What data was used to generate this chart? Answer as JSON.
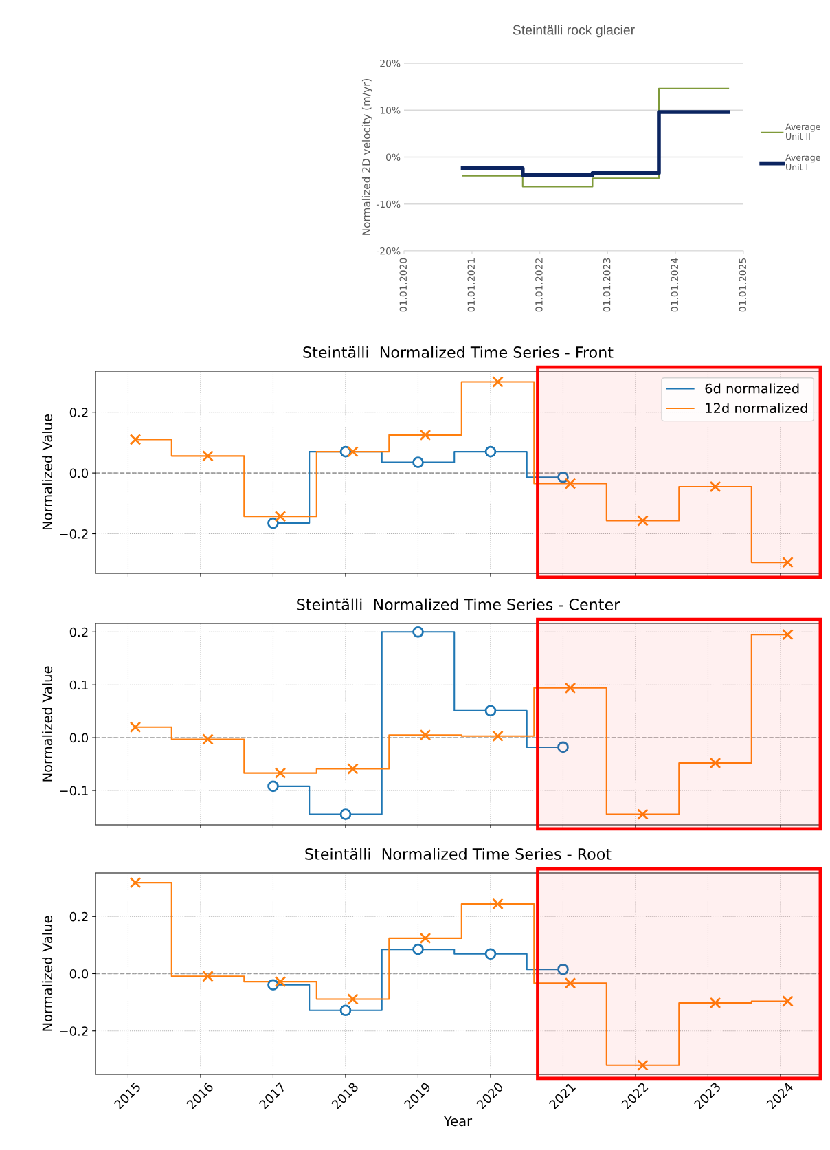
{
  "chart_data": [
    {
      "type": "step",
      "title": "Steintälli rock glacier",
      "ylabel": "Normalized 2D velocity (m/yr)",
      "series": [
        {
          "name": "Average Unit II",
          "color": "#7f9a3a",
          "x": [
            "2020-11-12",
            "2021-10-01",
            "2022-10-12",
            "2023-10-04",
            "2024-10-12"
          ],
          "values": [
            -4.0,
            -6.3,
            -4.5,
            14.6,
            14.6
          ]
        },
        {
          "name": "Average Unit I",
          "color": "#0b2460",
          "x": [
            "2020-11-12",
            "2021-10-01",
            "2022-10-12",
            "2023-10-04",
            "2024-10-12"
          ],
          "values": [
            -2.4,
            -3.8,
            -3.4,
            9.6,
            9.6
          ]
        }
      ],
      "xlim": [
        "2020-01-01",
        "2025-01-01"
      ],
      "xticks": [
        {
          "value": "2020-01-01",
          "label": "01.01.2020"
        },
        {
          "value": "2021-01-01",
          "label": "01.01.2021"
        },
        {
          "value": "2022-01-01",
          "label": "01.01.2022"
        },
        {
          "value": "2023-01-01",
          "label": "01.01.2023"
        },
        {
          "value": "2024-01-01",
          "label": "01.01.2024"
        },
        {
          "value": "2025-01-01",
          "label": "01.01.2025"
        }
      ],
      "ylim": [
        -20,
        20
      ],
      "yticks": [
        {
          "value": -20,
          "label": "-20%"
        },
        {
          "value": -10,
          "label": "-10%"
        },
        {
          "value": 0,
          "label": "0%"
        },
        {
          "value": 10,
          "label": "10%"
        },
        {
          "value": 20,
          "label": "20%"
        }
      ],
      "grid": "y",
      "legend": "right",
      "marker": "none",
      "line_style": "solid"
    },
    {
      "type": "step",
      "title": "Steintälli  Normalized Time Series - Front",
      "ylabel": "Normalized Value",
      "series": [
        {
          "name": "6d normalized",
          "color": "#1f77b4",
          "marker": "circle",
          "x": [
            2017,
            2018,
            2019,
            2020,
            2021
          ],
          "values": [
            -0.165,
            0.07,
            0.035,
            0.07,
            -0.014
          ]
        },
        {
          "name": "12d normalized",
          "color": "#ff7f0e",
          "marker": "cross",
          "x": [
            2015.1,
            2016.1,
            2017.1,
            2018.1,
            2019.1,
            2020.1,
            2021.1,
            2022.1,
            2023.1,
            2024.1
          ],
          "values": [
            0.11,
            0.056,
            -0.143,
            0.07,
            0.125,
            0.3,
            -0.035,
            -0.157,
            -0.045,
            -0.294
          ]
        }
      ],
      "xlim": [
        2014.55,
        2024.55
      ],
      "xticks": [
        2015,
        2016,
        2017,
        2018,
        2019,
        2020,
        2021,
        2022,
        2023,
        2024
      ],
      "ylim": [
        -0.33,
        0.335
      ],
      "yticks": [
        {
          "value": -0.2,
          "label": "−0.2"
        },
        {
          "value": 0,
          "label": "0.0"
        },
        {
          "value": 0.2,
          "label": "0.2"
        }
      ],
      "ref_lines": [
        {
          "axis": "y",
          "value": 0,
          "color": "#999999",
          "line_style": "dashed"
        }
      ],
      "bands": [
        {
          "axis": "x",
          "from": 2020.65,
          "to": 2024.55,
          "color": "#ff0000"
        }
      ],
      "grid": true,
      "legend": "top right",
      "tick_labels": "y",
      "line_style": "solid"
    },
    {
      "type": "step",
      "title": "Steintälli  Normalized Time Series - Center",
      "ylabel": "Normalized Value",
      "series": [
        {
          "color": "#1f77b4",
          "marker": "circle",
          "x": [
            2017,
            2018,
            2019,
            2020,
            2021
          ],
          "values": [
            -0.092,
            -0.145,
            0.2,
            0.051,
            -0.018
          ]
        },
        {
          "color": "#ff7f0e",
          "marker": "cross",
          "x": [
            2015.1,
            2016.1,
            2017.1,
            2018.1,
            2019.1,
            2020.1,
            2021.1,
            2022.1,
            2023.1,
            2024.1
          ],
          "values": [
            0.02,
            -0.003,
            -0.067,
            -0.059,
            0.005,
            0.003,
            0.094,
            -0.145,
            -0.048,
            0.195
          ]
        }
      ],
      "xlim": [
        2014.55,
        2024.55
      ],
      "xticks": [
        2015,
        2016,
        2017,
        2018,
        2019,
        2020,
        2021,
        2022,
        2023,
        2024
      ],
      "ylim": [
        -0.165,
        0.216
      ],
      "yticks": [
        {
          "value": -0.1,
          "label": "−0.1"
        },
        {
          "value": 0,
          "label": "0.0"
        },
        {
          "value": 0.1,
          "label": "0.1"
        },
        {
          "value": 0.2,
          "label": "0.2"
        }
      ],
      "ref_lines": [
        {
          "axis": "y",
          "value": 0,
          "color": "#999999",
          "line_style": "dashed"
        }
      ],
      "bands": [
        {
          "axis": "x",
          "from": 2020.65,
          "to": 2024.55,
          "color": "#ff0000"
        }
      ],
      "grid": true,
      "tick_labels": "y",
      "line_style": "solid"
    },
    {
      "type": "step",
      "title": "Steintälli  Normalized Time Series - Root",
      "xlabel": "Year",
      "ylabel": "Normalized Value",
      "series": [
        {
          "color": "#1f77b4",
          "marker": "circle",
          "x": [
            2017,
            2018,
            2019,
            2020,
            2021
          ],
          "values": [
            -0.039,
            -0.128,
            0.085,
            0.069,
            0.015
          ]
        },
        {
          "color": "#ff7f0e",
          "marker": "cross",
          "x": [
            2015.1,
            2016.1,
            2017.1,
            2018.1,
            2019.1,
            2020.1,
            2021.1,
            2022.1,
            2023.1,
            2024.1
          ],
          "values": [
            0.318,
            -0.009,
            -0.028,
            -0.089,
            0.124,
            0.244,
            -0.033,
            -0.32,
            -0.102,
            -0.096
          ]
        }
      ],
      "xlim": [
        2014.55,
        2024.55
      ],
      "xticks": [
        2015,
        2016,
        2017,
        2018,
        2019,
        2020,
        2021,
        2022,
        2023,
        2024
      ],
      "ylim": [
        -0.352,
        0.352
      ],
      "yticks": [
        {
          "value": -0.2,
          "label": "−0.2"
        },
        {
          "value": 0,
          "label": "0.0"
        },
        {
          "value": 0.2,
          "label": "0.2"
        }
      ],
      "ref_lines": [
        {
          "axis": "y",
          "value": 0,
          "color": "#999999",
          "line_style": "dashed"
        }
      ],
      "bands": [
        {
          "axis": "x",
          "from": 2020.65,
          "to": 2024.55,
          "color": "#ff0000"
        }
      ],
      "grid": true,
      "line_style": "solid"
    }
  ]
}
